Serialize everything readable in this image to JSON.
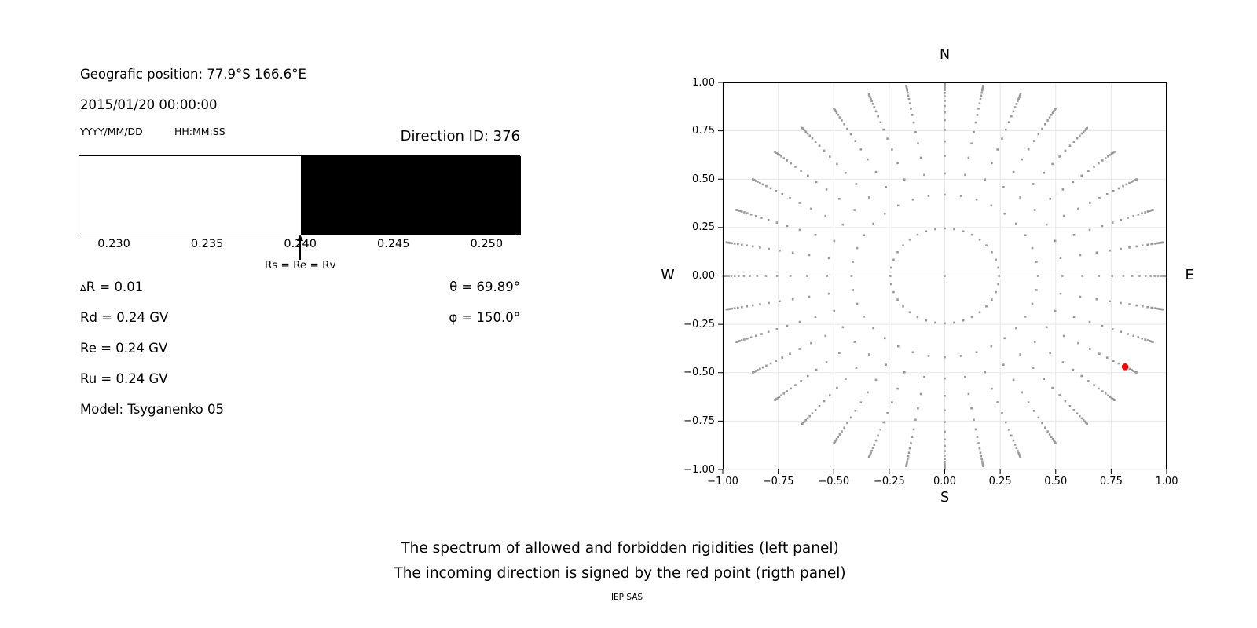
{
  "left_panel": {
    "geo_position": "Geografic position: 77.9°S 166.6°E",
    "datetime": "2015/01/20 00:00:00",
    "date_format": "YYYY/MM/DD",
    "time_format": "HH:MM:SS",
    "direction_id": "Direction ID: 376",
    "delta_symbol": "∆",
    "delta_rest": "R = 0.01",
    "rd": "Rd = 0.24 GV",
    "re": "Re = 0.24 GV",
    "ru": "Ru = 0.24 GV",
    "model": "Model: Tsyganenko 05",
    "theta": "θ = 69.89°",
    "phi": "φ = 150.0°"
  },
  "captions": {
    "line1": "The spectrum of allowed and forbidden rigidities (left panel)",
    "line2": "The incoming direction is signed by the red point (rigth panel)",
    "credit": "IEP SAS"
  },
  "chart_data": [
    {
      "type": "bar",
      "title": "",
      "xlabel": "",
      "xlim": [
        0.2281,
        0.2518
      ],
      "xticks": [
        {
          "v": 0.23,
          "t": "0.230"
        },
        {
          "v": 0.235,
          "t": "0.235"
        },
        {
          "v": 0.24,
          "t": "0.240"
        },
        {
          "v": 0.245,
          "t": "0.245"
        },
        {
          "v": 0.25,
          "t": "0.250"
        }
      ],
      "regions": [
        {
          "from": 0.2281,
          "to": 0.24,
          "color": "#ffffff",
          "meaning": "allowed rigidities"
        },
        {
          "from": 0.24,
          "to": 0.2518,
          "color": "#000000",
          "meaning": "forbidden rigidities"
        }
      ],
      "annotation": {
        "x": 0.24,
        "label": "Rs = Re = Rv"
      }
    },
    {
      "type": "scatter",
      "title": "",
      "compass": {
        "top": "N",
        "bottom": "S",
        "left": "W",
        "right": "E"
      },
      "xlim": [
        -1,
        1
      ],
      "ylim": [
        -1,
        1
      ],
      "grid": true,
      "grid_color": "#e8e8e8",
      "xticks": [
        {
          "v": -1.0,
          "t": "−1.00"
        },
        {
          "v": -0.75,
          "t": "−0.75"
        },
        {
          "v": -0.5,
          "t": "−0.50"
        },
        {
          "v": -0.25,
          "t": "−0.25"
        },
        {
          "v": 0.0,
          "t": "0.00"
        },
        {
          "v": 0.25,
          "t": "0.25"
        },
        {
          "v": 0.5,
          "t": "0.50"
        },
        {
          "v": 0.75,
          "t": "0.75"
        },
        {
          "v": 1.0,
          "t": "1.00"
        }
      ],
      "yticks": [
        {
          "v": 1.0,
          "t": "1.00"
        },
        {
          "v": 0.75,
          "t": "0.75"
        },
        {
          "v": 0.5,
          "t": "0.50"
        },
        {
          "v": 0.25,
          "t": "0.25"
        },
        {
          "v": 0.0,
          "t": "0.00"
        },
        {
          "v": -0.25,
          "t": "−0.25"
        },
        {
          "v": -0.5,
          "t": "−0.50"
        },
        {
          "v": -0.75,
          "t": "−0.75"
        },
        {
          "v": -1.0,
          "t": "−1.00"
        }
      ],
      "dot_color": "#999999",
      "spokes": {
        "azimuths_deg": [
          0,
          10,
          20,
          30,
          40,
          50,
          60,
          70,
          80,
          90,
          100,
          110,
          120,
          130,
          140,
          150,
          160,
          170,
          180,
          190,
          200,
          210,
          220,
          230,
          240,
          250,
          260,
          270,
          280,
          290,
          300,
          310,
          320,
          330,
          340,
          350
        ],
        "radii": [
          0.245,
          0.42,
          0.53,
          0.62,
          0.695,
          0.755,
          0.805,
          0.845,
          0.878,
          0.905,
          0.928,
          0.946,
          0.961,
          0.973,
          0.982,
          0.989,
          0.994,
          0.998
        ]
      },
      "center_dot": {
        "x": 0,
        "y": 0
      },
      "red_point": {
        "x": 0.813,
        "y": -0.47,
        "color": "#ff0000",
        "meaning": "incoming direction"
      }
    }
  ]
}
